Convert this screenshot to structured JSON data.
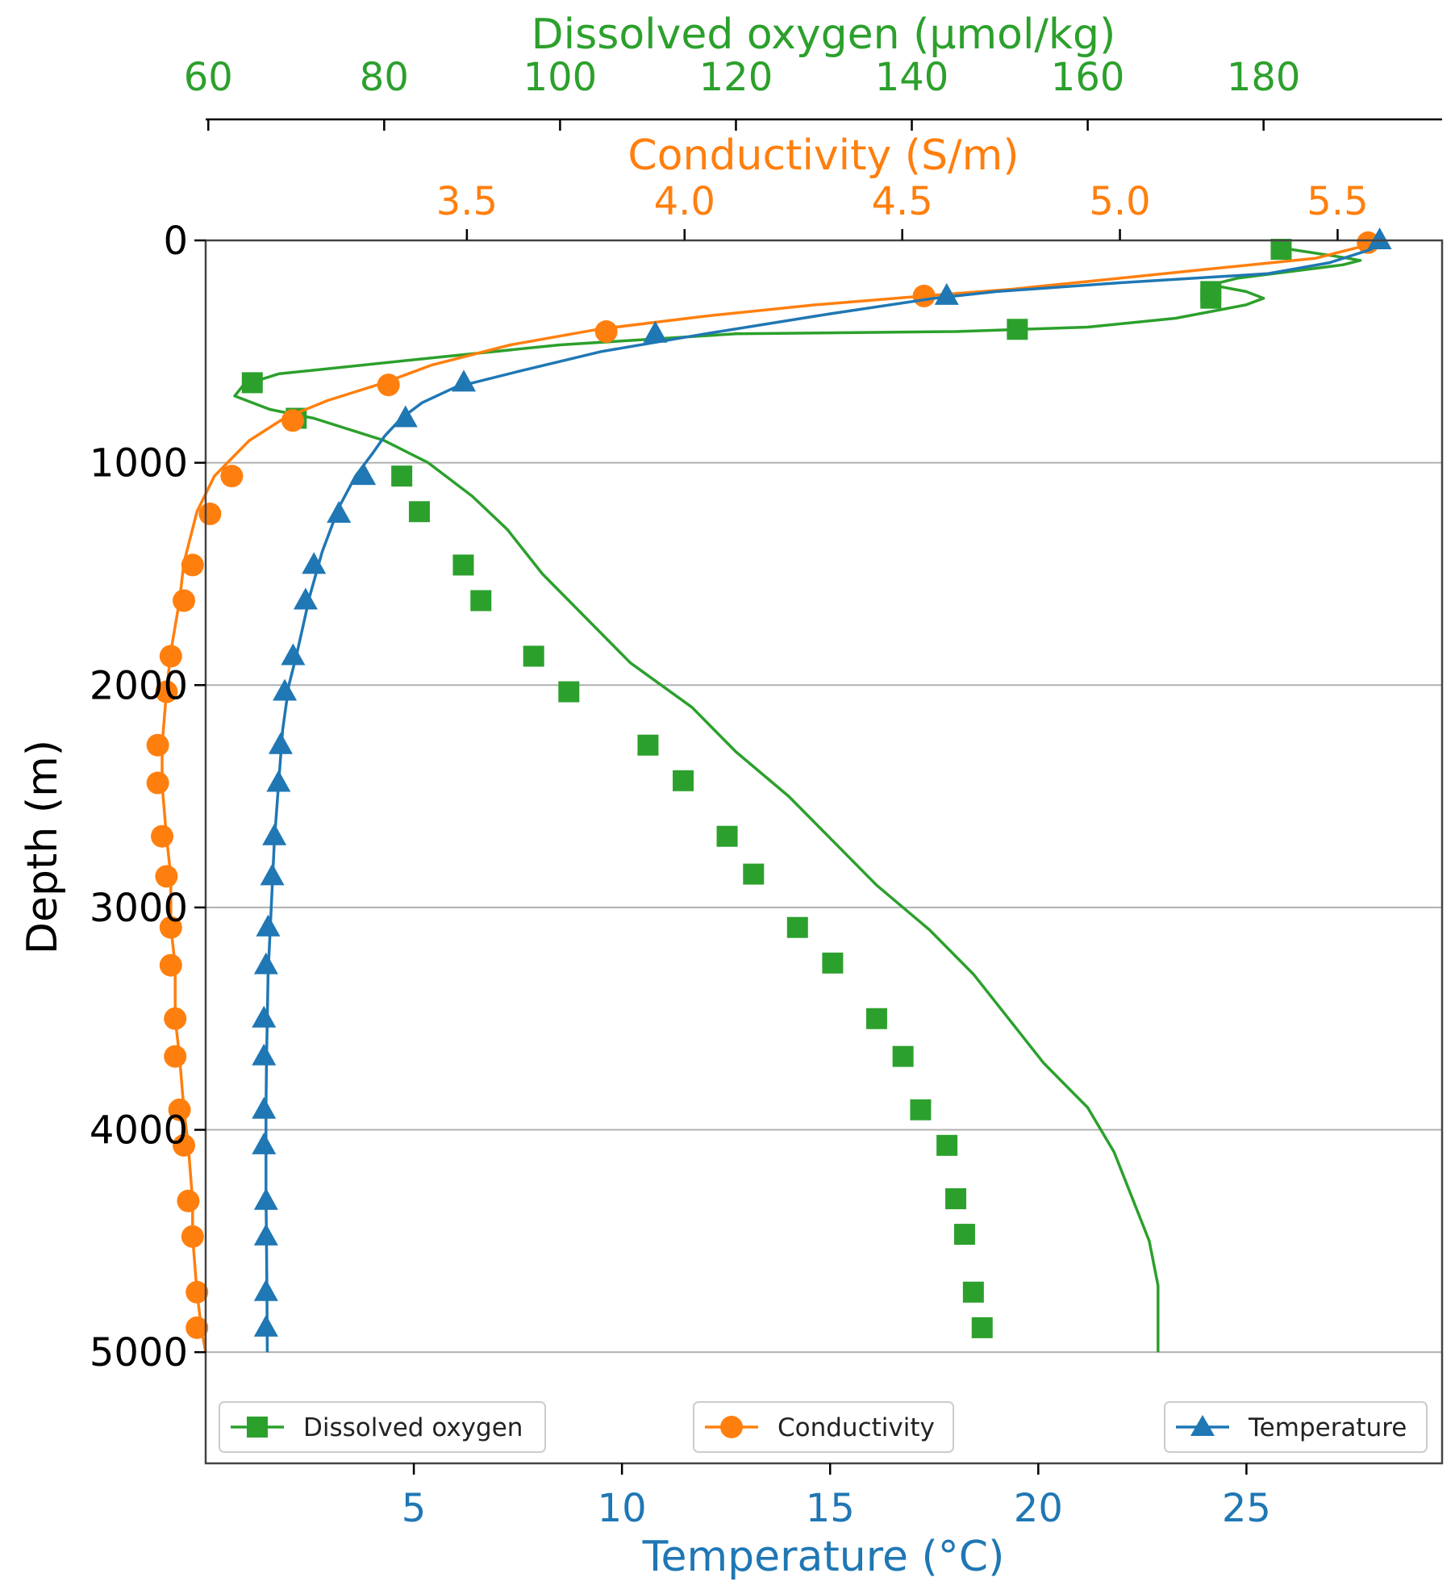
{
  "colors": {
    "temperature": "#1f77b4",
    "conductivity": "#ff7f0e",
    "oxygen": "#2ca02c",
    "axis": "#000000",
    "frame": "#444444",
    "grid": "#b0b0b0"
  },
  "chart_data": {
    "type": "line",
    "orientation": "vertical-profile",
    "grid": "horizontal",
    "y_axis": {
      "label": "Depth (m)",
      "range": [
        5500,
        0
      ],
      "inverted": true,
      "ticks": [
        0,
        1000,
        2000,
        3000,
        4000,
        5000
      ],
      "tick_labels": [
        "0",
        "1000",
        "2000",
        "3000",
        "4000",
        "5000"
      ]
    },
    "x_axes": {
      "temperature": {
        "label": "Temperature (°C)",
        "position": "bottom",
        "range": [
          0.0,
          29.7
        ],
        "ticks": [
          5,
          10,
          15,
          20,
          25
        ],
        "tick_labels": [
          "5",
          "10",
          "15",
          "20",
          "25"
        ]
      },
      "conductivity": {
        "label": "Conductivity (S/m)",
        "position": "top-inner",
        "range": [
          2.9,
          5.74
        ],
        "ticks": [
          3.5,
          4.0,
          4.5,
          5.0,
          5.5
        ],
        "tick_labels": [
          "3.5",
          "4.0",
          "4.5",
          "5.0",
          "5.5"
        ]
      },
      "oxygen": {
        "label": "Dissolved oxygen (μmol/kg)",
        "position": "top-outer",
        "range": [
          59.7,
          200.3
        ],
        "ticks": [
          60,
          80,
          100,
          120,
          140,
          160,
          180
        ],
        "tick_labels": [
          "60",
          "80",
          "100",
          "120",
          "140",
          "160",
          "180"
        ]
      }
    },
    "series": [
      {
        "name": "Temperature",
        "axis": "temperature",
        "marker": "triangle",
        "points": [
          [
            28.2,
            0
          ],
          [
            28.0,
            40
          ],
          [
            27.0,
            100
          ],
          [
            25.5,
            150
          ],
          [
            22.0,
            190
          ],
          [
            19.0,
            230
          ],
          [
            17.5,
            260
          ],
          [
            15.0,
            330
          ],
          [
            12.0,
            420
          ],
          [
            9.5,
            500
          ],
          [
            7.5,
            590
          ],
          [
            6.0,
            660
          ],
          [
            5.2,
            730
          ],
          [
            4.7,
            800
          ],
          [
            4.3,
            880
          ],
          [
            4.0,
            960
          ],
          [
            3.6,
            1060
          ],
          [
            3.2,
            1200
          ],
          [
            2.8,
            1400
          ],
          [
            2.5,
            1600
          ],
          [
            2.2,
            1850
          ],
          [
            2.0,
            2000
          ],
          [
            1.85,
            2200
          ],
          [
            1.75,
            2450
          ],
          [
            1.65,
            2700
          ],
          [
            1.6,
            2900
          ],
          [
            1.55,
            3100
          ],
          [
            1.5,
            3300
          ],
          [
            1.48,
            3500
          ],
          [
            1.46,
            3700
          ],
          [
            1.45,
            3900
          ],
          [
            1.45,
            4100
          ],
          [
            1.45,
            4300
          ],
          [
            1.46,
            4500
          ],
          [
            1.47,
            4700
          ],
          [
            1.48,
            5000
          ]
        ],
        "markers": [
          [
            28.2,
            0
          ],
          [
            17.8,
            250
          ],
          [
            10.8,
            420
          ],
          [
            6.2,
            640
          ],
          [
            4.8,
            800
          ],
          [
            3.8,
            1060
          ],
          [
            3.2,
            1230
          ],
          [
            2.6,
            1460
          ],
          [
            2.4,
            1620
          ],
          [
            2.1,
            1870
          ],
          [
            1.9,
            2030
          ],
          [
            1.8,
            2270
          ],
          [
            1.75,
            2440
          ],
          [
            1.65,
            2680
          ],
          [
            1.6,
            2860
          ],
          [
            1.5,
            3090
          ],
          [
            1.45,
            3260
          ],
          [
            1.4,
            3500
          ],
          [
            1.4,
            3670
          ],
          [
            1.4,
            3910
          ],
          [
            1.4,
            4070
          ],
          [
            1.45,
            4320
          ],
          [
            1.45,
            4480
          ],
          [
            1.45,
            4730
          ],
          [
            1.45,
            4890
          ]
        ]
      },
      {
        "name": "Conductivity",
        "axis": "conductivity",
        "marker": "circle",
        "points": [
          [
            5.58,
            0
          ],
          [
            5.55,
            30
          ],
          [
            5.45,
            80
          ],
          [
            5.2,
            130
          ],
          [
            4.95,
            180
          ],
          [
            4.75,
            220
          ],
          [
            4.55,
            250
          ],
          [
            4.3,
            290
          ],
          [
            4.05,
            340
          ],
          [
            3.8,
            400
          ],
          [
            3.6,
            470
          ],
          [
            3.42,
            560
          ],
          [
            3.31,
            640
          ],
          [
            3.18,
            720
          ],
          [
            3.08,
            800
          ],
          [
            3.0,
            900
          ],
          [
            2.95,
            1000
          ],
          [
            2.92,
            1060
          ],
          [
            2.88,
            1220
          ],
          [
            2.85,
            1450
          ],
          [
            2.84,
            1620
          ],
          [
            2.82,
            1850
          ],
          [
            2.81,
            2030
          ],
          [
            2.8,
            2270
          ],
          [
            2.8,
            2450
          ],
          [
            2.81,
            2680
          ],
          [
            2.82,
            2860
          ],
          [
            2.82,
            3090
          ],
          [
            2.83,
            3260
          ],
          [
            2.83,
            3500
          ],
          [
            2.84,
            3670
          ],
          [
            2.85,
            3910
          ],
          [
            2.86,
            4070
          ],
          [
            2.87,
            4320
          ],
          [
            2.87,
            4480
          ],
          [
            2.88,
            4730
          ],
          [
            2.89,
            4890
          ],
          [
            2.9,
            5000
          ]
        ],
        "markers": [
          [
            5.57,
            10
          ],
          [
            4.55,
            250
          ],
          [
            3.82,
            410
          ],
          [
            3.32,
            650
          ],
          [
            3.1,
            810
          ],
          [
            2.96,
            1060
          ],
          [
            2.91,
            1230
          ],
          [
            2.87,
            1460
          ],
          [
            2.85,
            1620
          ],
          [
            2.82,
            1870
          ],
          [
            2.81,
            2030
          ],
          [
            2.79,
            2270
          ],
          [
            2.79,
            2440
          ],
          [
            2.8,
            2680
          ],
          [
            2.81,
            2860
          ],
          [
            2.82,
            3090
          ],
          [
            2.82,
            3260
          ],
          [
            2.83,
            3500
          ],
          [
            2.83,
            3670
          ],
          [
            2.84,
            3910
          ],
          [
            2.85,
            4070
          ],
          [
            2.86,
            4320
          ],
          [
            2.87,
            4480
          ],
          [
            2.88,
            4730
          ],
          [
            2.88,
            4890
          ]
        ]
      },
      {
        "name": "Dissolved oxygen",
        "axis": "oxygen",
        "marker": "square",
        "points": [
          [
            183,
            40
          ],
          [
            188,
            70
          ],
          [
            191,
            90
          ],
          [
            189,
            110
          ],
          [
            183,
            140
          ],
          [
            177,
            170
          ],
          [
            174,
            200
          ],
          [
            178,
            230
          ],
          [
            180,
            260
          ],
          [
            178,
            290
          ],
          [
            170,
            350
          ],
          [
            160,
            390
          ],
          [
            145,
            410
          ],
          [
            120,
            420
          ],
          [
            100,
            470
          ],
          [
            85,
            530
          ],
          [
            68,
            600
          ],
          [
            64,
            650
          ],
          [
            63,
            700
          ],
          [
            67,
            760
          ],
          [
            72,
            800
          ],
          [
            80,
            900
          ],
          [
            85,
            1000
          ],
          [
            90,
            1150
          ],
          [
            94,
            1300
          ],
          [
            98,
            1500
          ],
          [
            103,
            1700
          ],
          [
            108,
            1900
          ],
          [
            115,
            2100
          ],
          [
            120,
            2300
          ],
          [
            126,
            2500
          ],
          [
            131,
            2700
          ],
          [
            136,
            2900
          ],
          [
            142,
            3100
          ],
          [
            147,
            3300
          ],
          [
            151,
            3500
          ],
          [
            155,
            3700
          ],
          [
            160,
            3900
          ],
          [
            163,
            4100
          ],
          [
            165,
            4300
          ],
          [
            167,
            4500
          ],
          [
            168,
            4700
          ],
          [
            168,
            4900
          ],
          [
            168,
            5000
          ]
        ],
        "markers": [
          [
            182,
            40
          ],
          [
            174,
            230
          ],
          [
            174,
            260
          ],
          [
            152,
            400
          ],
          [
            65,
            640
          ],
          [
            70,
            800
          ],
          [
            82,
            1060
          ],
          [
            84,
            1220
          ],
          [
            89,
            1460
          ],
          [
            91,
            1620
          ],
          [
            97,
            1870
          ],
          [
            101,
            2030
          ],
          [
            110,
            2270
          ],
          [
            114,
            2430
          ],
          [
            119,
            2680
          ],
          [
            122,
            2850
          ],
          [
            127,
            3090
          ],
          [
            131,
            3250
          ],
          [
            136,
            3500
          ],
          [
            139,
            3670
          ],
          [
            141,
            3910
          ],
          [
            144,
            4070
          ],
          [
            145,
            4310
          ],
          [
            146,
            4470
          ],
          [
            147,
            4730
          ],
          [
            148,
            4890
          ]
        ]
      }
    ],
    "legend": [
      {
        "label": "Dissolved oxygen",
        "placement": "bottom-left"
      },
      {
        "label": "Conductivity",
        "placement": "bottom-center"
      },
      {
        "label": "Temperature",
        "placement": "bottom-right"
      }
    ]
  }
}
